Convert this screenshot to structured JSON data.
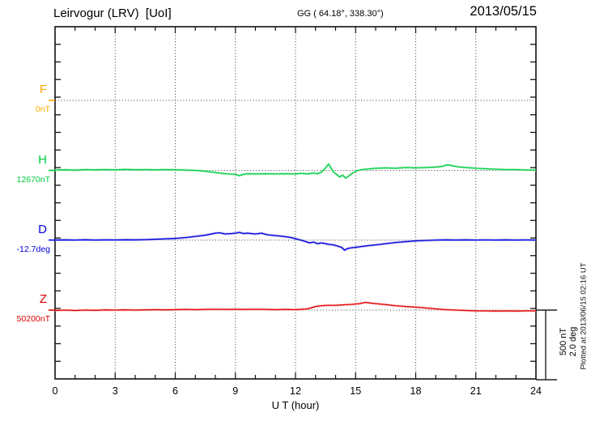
{
  "header": {
    "title": "Leirvogur (LRV)  [UoI]",
    "coords": "GG ( 64.18°, 338.30°)",
    "date": "2013/05/15"
  },
  "channels": [
    {
      "id": "F",
      "label": "F",
      "value_label": "0nT",
      "color": "#ffaa00",
      "halo": "#ffd899"
    },
    {
      "id": "H",
      "label": "H",
      "value_label": "12670nT",
      "color": "#00cc44",
      "halo": "#99eeb3"
    },
    {
      "id": "D",
      "label": "D",
      "value_label": "-12.7deg",
      "color": "#0000dd",
      "halo": "#9a9aea"
    },
    {
      "id": "Z",
      "label": "Z",
      "value_label": "50200nT",
      "color": "#dd0000",
      "halo": "#ffa3a3"
    }
  ],
  "x_axis": {
    "label": "U T (hour)",
    "ticks": [
      "0",
      "3",
      "6",
      "9",
      "12",
      "15",
      "18",
      "21",
      "24"
    ]
  },
  "scale_bar": {
    "labels": [
      "500 nT",
      "2.0 deg"
    ]
  },
  "footer": {
    "plotted_at": "Plotted at 2013/06/15 02:16 UT"
  },
  "chart_data": {
    "type": "line",
    "title": "Leirvogur (LRV) magnetogram",
    "xlabel": "U T (hour)",
    "x_range": [
      0,
      24
    ],
    "x_ticks": [
      0,
      3,
      6,
      9,
      12,
      15,
      18,
      21,
      24
    ],
    "grid": "dotted, every 3 hours vertical; dotted horizontal at each channel baseline",
    "scale": {
      "per_division_nT": 500,
      "per_division_deg": 2.0
    },
    "note": "values are deltas from each channel baseline shown in value_label",
    "series": [
      {
        "name": "F",
        "units": "nT",
        "baseline_value": 0,
        "points": []
      },
      {
        "name": "H",
        "units": "nT",
        "baseline_value": 12670,
        "points": [
          [
            0,
            3
          ],
          [
            0.5,
            5
          ],
          [
            1,
            2
          ],
          [
            1.5,
            6
          ],
          [
            2,
            4
          ],
          [
            2.5,
            6
          ],
          [
            3,
            4
          ],
          [
            3.5,
            7
          ],
          [
            4,
            5
          ],
          [
            4.5,
            6
          ],
          [
            5,
            4
          ],
          [
            5.5,
            6
          ],
          [
            6,
            5
          ],
          [
            6.5,
            3
          ],
          [
            7,
            0
          ],
          [
            7.5,
            -6
          ],
          [
            8,
            -15
          ],
          [
            8.5,
            -24
          ],
          [
            9,
            -29
          ],
          [
            9.2,
            -38
          ],
          [
            9.4,
            -29
          ],
          [
            9.6,
            -24
          ],
          [
            10,
            -26
          ],
          [
            10.5,
            -24
          ],
          [
            11,
            -26
          ],
          [
            11.5,
            -24
          ],
          [
            12,
            -26
          ],
          [
            12.3,
            -21
          ],
          [
            12.6,
            -26
          ],
          [
            12.9,
            -18
          ],
          [
            13.1,
            -24
          ],
          [
            13.3,
            -12
          ],
          [
            13.5,
            18
          ],
          [
            13.65,
            47
          ],
          [
            13.8,
            12
          ],
          [
            13.9,
            -12
          ],
          [
            14.05,
            -29
          ],
          [
            14.2,
            -47
          ],
          [
            14.35,
            -35
          ],
          [
            14.5,
            -56
          ],
          [
            14.65,
            -41
          ],
          [
            14.8,
            -24
          ],
          [
            15,
            -6
          ],
          [
            15.2,
            3
          ],
          [
            15.5,
            9
          ],
          [
            16,
            15
          ],
          [
            16.5,
            18
          ],
          [
            17,
            15
          ],
          [
            17.5,
            21
          ],
          [
            18,
            18
          ],
          [
            18.5,
            21
          ],
          [
            19,
            24
          ],
          [
            19.3,
            29
          ],
          [
            19.6,
            41
          ],
          [
            19.9,
            32
          ],
          [
            20.2,
            24
          ],
          [
            20.5,
            21
          ],
          [
            21,
            15
          ],
          [
            21.5,
            12
          ],
          [
            22,
            9
          ],
          [
            22.5,
            6
          ],
          [
            23,
            6
          ],
          [
            23.5,
            3
          ],
          [
            24,
            3
          ]
        ]
      },
      {
        "name": "D",
        "units": "deg",
        "baseline_value": -12.7,
        "points": [
          [
            0,
            0
          ],
          [
            0.5,
            0.005
          ],
          [
            1,
            0
          ],
          [
            1.5,
            0.007
          ],
          [
            2,
            0
          ],
          [
            2.5,
            0.005
          ],
          [
            3,
            0.002
          ],
          [
            3.5,
            0.007
          ],
          [
            4,
            0.005
          ],
          [
            4.5,
            0.012
          ],
          [
            5,
            0.024
          ],
          [
            5.5,
            0.035
          ],
          [
            6,
            0.047
          ],
          [
            6.5,
            0.071
          ],
          [
            7,
            0.106
          ],
          [
            7.5,
            0.141
          ],
          [
            8,
            0.2
          ],
          [
            8.2,
            0.212
          ],
          [
            8.5,
            0.176
          ],
          [
            8.8,
            0.188
          ],
          [
            9,
            0.2
          ],
          [
            9.2,
            0.224
          ],
          [
            9.4,
            0.188
          ],
          [
            9.6,
            0.2
          ],
          [
            10,
            0.176
          ],
          [
            10.3,
            0.2
          ],
          [
            10.6,
            0.153
          ],
          [
            11,
            0.129
          ],
          [
            11.4,
            0.106
          ],
          [
            11.8,
            0.071
          ],
          [
            12.1,
            0.024
          ],
          [
            12.4,
            -0.024
          ],
          [
            12.7,
            -0.082
          ],
          [
            12.9,
            -0.059
          ],
          [
            13.1,
            -0.106
          ],
          [
            13.3,
            -0.082
          ],
          [
            13.6,
            -0.118
          ],
          [
            13.9,
            -0.141
          ],
          [
            14.1,
            -0.176
          ],
          [
            14.3,
            -0.212
          ],
          [
            14.45,
            -0.294
          ],
          [
            14.6,
            -0.247
          ],
          [
            14.8,
            -0.224
          ],
          [
            15,
            -0.212
          ],
          [
            15.3,
            -0.188
          ],
          [
            15.6,
            -0.165
          ],
          [
            16,
            -0.141
          ],
          [
            16.5,
            -0.106
          ],
          [
            17,
            -0.071
          ],
          [
            17.5,
            -0.047
          ],
          [
            18,
            -0.024
          ],
          [
            18.5,
            -0.012
          ],
          [
            19,
            0
          ],
          [
            19.5,
            0.005
          ],
          [
            20,
            0
          ],
          [
            20.5,
            0.005
          ],
          [
            21,
            0
          ],
          [
            21.5,
            0.002
          ],
          [
            22,
            0
          ],
          [
            22.5,
            0.005
          ],
          [
            23,
            0
          ],
          [
            23.5,
            0.002
          ],
          [
            24,
            0
          ]
        ]
      },
      {
        "name": "Z",
        "units": "nT",
        "baseline_value": 50200,
        "points": [
          [
            0,
            -3
          ],
          [
            0.5,
            0
          ],
          [
            1,
            -3
          ],
          [
            1.5,
            0
          ],
          [
            2,
            -2
          ],
          [
            2.5,
            1
          ],
          [
            3,
            0
          ],
          [
            3.5,
            2
          ],
          [
            4,
            0
          ],
          [
            4.5,
            2
          ],
          [
            5,
            3
          ],
          [
            5.5,
            2
          ],
          [
            6,
            3
          ],
          [
            6.5,
            5
          ],
          [
            7,
            3
          ],
          [
            7.5,
            5
          ],
          [
            8,
            6
          ],
          [
            8.5,
            5
          ],
          [
            9,
            6
          ],
          [
            9.5,
            5
          ],
          [
            10,
            6
          ],
          [
            10.5,
            5
          ],
          [
            11,
            3
          ],
          [
            11.5,
            5
          ],
          [
            12,
            3
          ],
          [
            12.3,
            6
          ],
          [
            12.6,
            9
          ],
          [
            13,
            26
          ],
          [
            13.3,
            32
          ],
          [
            13.6,
            35
          ],
          [
            14,
            35
          ],
          [
            14.4,
            38
          ],
          [
            14.8,
            41
          ],
          [
            15.2,
            47
          ],
          [
            15.5,
            56
          ],
          [
            15.8,
            50
          ],
          [
            16.2,
            44
          ],
          [
            16.6,
            38
          ],
          [
            17,
            32
          ],
          [
            17.5,
            26
          ],
          [
            18,
            21
          ],
          [
            18.5,
            15
          ],
          [
            19,
            9
          ],
          [
            19.5,
            3
          ],
          [
            20,
            0
          ],
          [
            20.5,
            -3
          ],
          [
            21,
            -6
          ],
          [
            21.5,
            -6
          ],
          [
            22,
            -7
          ],
          [
            22.5,
            -6
          ],
          [
            23,
            -7
          ],
          [
            23.5,
            -6
          ],
          [
            24,
            -6
          ]
        ]
      }
    ]
  }
}
